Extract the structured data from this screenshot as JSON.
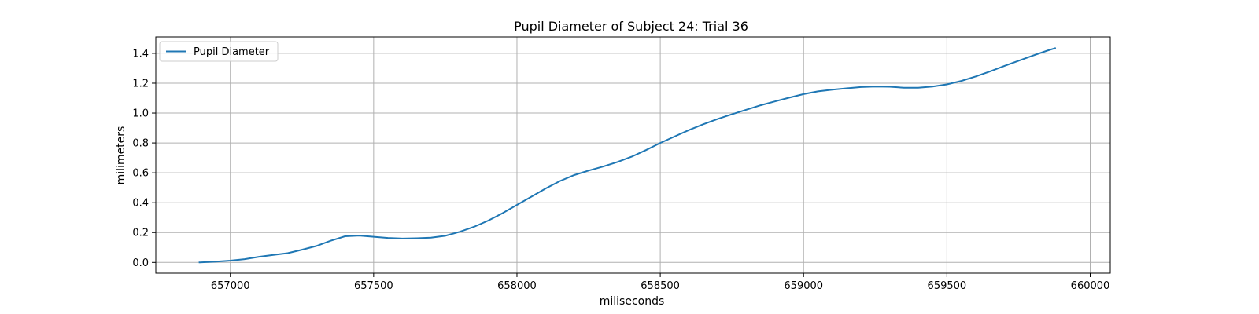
{
  "chart_data": {
    "type": "line",
    "title": "Pupil Diameter of Subject 24: Trial 36",
    "xlabel": "miliseconds",
    "ylabel": "milimeters",
    "xlim": [
      656740,
      660070
    ],
    "ylim": [
      -0.072,
      1.51
    ],
    "xticks": [
      657000,
      657500,
      658000,
      658500,
      659000,
      659500,
      660000
    ],
    "yticks": [
      0.0,
      0.2,
      0.4,
      0.6,
      0.8,
      1.0,
      1.2,
      1.4
    ],
    "grid": true,
    "legend": "upper-left",
    "series": [
      {
        "name": "Pupil Diameter",
        "color": "#1f77b4",
        "x": [
          656890,
          656950,
          657000,
          657050,
          657100,
          657150,
          657200,
          657250,
          657300,
          657350,
          657400,
          657450,
          657500,
          657550,
          657600,
          657650,
          657700,
          657750,
          657800,
          657850,
          657900,
          657950,
          658000,
          658050,
          658100,
          658150,
          658200,
          658250,
          658300,
          658350,
          658400,
          658450,
          658500,
          658550,
          658600,
          658650,
          658700,
          658750,
          658800,
          658850,
          658900,
          658950,
          659000,
          659050,
          659100,
          659150,
          659200,
          659250,
          659300,
          659350,
          659400,
          659450,
          659500,
          659550,
          659600,
          659650,
          659700,
          659750,
          659800,
          659850,
          659880
        ],
        "y": [
          0.0,
          0.005,
          0.012,
          0.022,
          0.038,
          0.05,
          0.062,
          0.085,
          0.11,
          0.145,
          0.175,
          0.18,
          0.172,
          0.164,
          0.16,
          0.162,
          0.166,
          0.178,
          0.205,
          0.238,
          0.28,
          0.33,
          0.385,
          0.44,
          0.495,
          0.545,
          0.585,
          0.615,
          0.642,
          0.672,
          0.708,
          0.752,
          0.8,
          0.843,
          0.886,
          0.925,
          0.96,
          0.992,
          1.022,
          1.052,
          1.078,
          1.103,
          1.127,
          1.145,
          1.157,
          1.166,
          1.174,
          1.178,
          1.176,
          1.17,
          1.17,
          1.178,
          1.192,
          1.215,
          1.245,
          1.278,
          1.315,
          1.35,
          1.385,
          1.418,
          1.436
        ]
      }
    ]
  }
}
